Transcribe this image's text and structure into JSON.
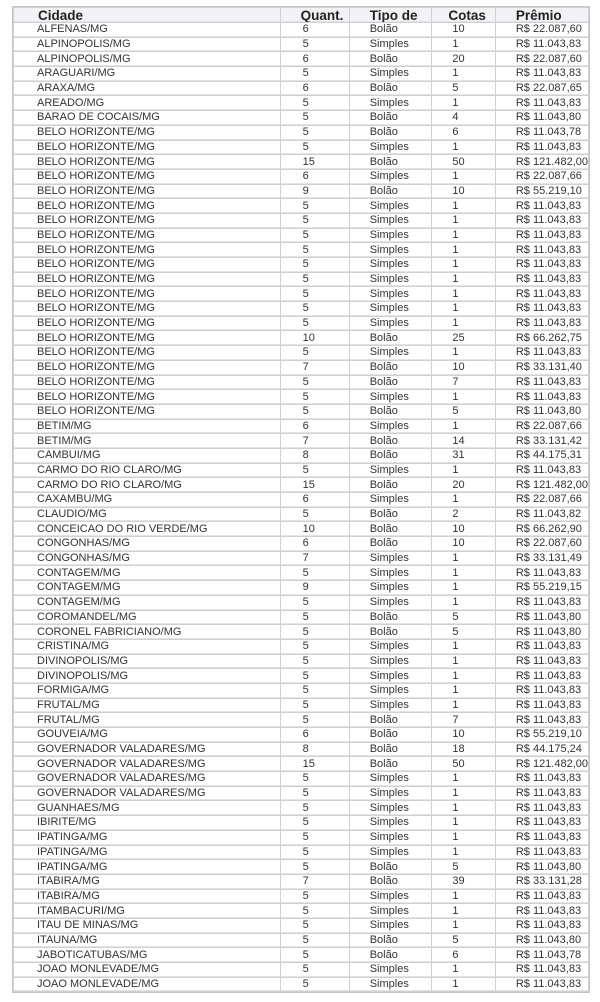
{
  "table": {
    "headers": [
      "Cidade",
      "Quant.",
      "Tipo de",
      "Cotas",
      "Prêmio"
    ],
    "rows": [
      [
        "ALFENAS/MG",
        "6",
        "Bolão",
        "10",
        "R$ 22.087,60"
      ],
      [
        "ALPINOPOLIS/MG",
        "5",
        "Simples",
        "1",
        "R$ 11.043,83"
      ],
      [
        "ALPINOPOLIS/MG",
        "6",
        "Bolão",
        "20",
        "R$ 22.087,60"
      ],
      [
        "ARAGUARI/MG",
        "5",
        "Simples",
        "1",
        "R$ 11.043,83"
      ],
      [
        "ARAXA/MG",
        "6",
        "Bolão",
        "5",
        "R$ 22.087,65"
      ],
      [
        "AREADO/MG",
        "5",
        "Simples",
        "1",
        "R$ 11.043,83"
      ],
      [
        "BARAO DE COCAIS/MG",
        "5",
        "Bolão",
        "4",
        "R$ 11.043,80"
      ],
      [
        "BELO HORIZONTE/MG",
        "5",
        "Bolão",
        "6",
        "R$ 11.043,78"
      ],
      [
        "BELO HORIZONTE/MG",
        "5",
        "Simples",
        "1",
        "R$ 11.043,83"
      ],
      [
        "BELO HORIZONTE/MG",
        "15",
        "Bolão",
        "50",
        "R$ 121.482,00"
      ],
      [
        "BELO HORIZONTE/MG",
        "6",
        "Simples",
        "1",
        "R$ 22.087,66"
      ],
      [
        "BELO HORIZONTE/MG",
        "9",
        "Bolão",
        "10",
        "R$ 55.219,10"
      ],
      [
        "BELO HORIZONTE/MG",
        "5",
        "Simples",
        "1",
        "R$ 11.043,83"
      ],
      [
        "BELO HORIZONTE/MG",
        "5",
        "Simples",
        "1",
        "R$ 11.043,83"
      ],
      [
        "BELO HORIZONTE/MG",
        "5",
        "Simples",
        "1",
        "R$ 11.043,83"
      ],
      [
        "BELO HORIZONTE/MG",
        "5",
        "Simples",
        "1",
        "R$ 11.043,83"
      ],
      [
        "BELO HORIZONTE/MG",
        "5",
        "Simples",
        "1",
        "R$ 11.043,83"
      ],
      [
        "BELO HORIZONTE/MG",
        "5",
        "Simples",
        "1",
        "R$ 11.043,83"
      ],
      [
        "BELO HORIZONTE/MG",
        "5",
        "Simples",
        "1",
        "R$ 11.043,83"
      ],
      [
        "BELO HORIZONTE/MG",
        "5",
        "Simples",
        "1",
        "R$ 11.043,83"
      ],
      [
        "BELO HORIZONTE/MG",
        "5",
        "Simples",
        "1",
        "R$ 11.043,83"
      ],
      [
        "BELO HORIZONTE/MG",
        "10",
        "Bolão",
        "25",
        "R$ 66.262,75"
      ],
      [
        "BELO HORIZONTE/MG",
        "5",
        "Simples",
        "1",
        "R$ 11.043,83"
      ],
      [
        "BELO HORIZONTE/MG",
        "7",
        "Bolão",
        "10",
        "R$ 33.131,40"
      ],
      [
        "BELO HORIZONTE/MG",
        "5",
        "Bolão",
        "7",
        "R$ 11.043,83"
      ],
      [
        "BELO HORIZONTE/MG",
        "5",
        "Simples",
        "1",
        "R$ 11.043,83"
      ],
      [
        "BELO HORIZONTE/MG",
        "5",
        "Bolão",
        "5",
        "R$ 11.043,80"
      ],
      [
        "BETIM/MG",
        "6",
        "Simples",
        "1",
        "R$ 22.087,66"
      ],
      [
        "BETIM/MG",
        "7",
        "Bolão",
        "14",
        "R$ 33.131,42"
      ],
      [
        "CAMBUI/MG",
        "8",
        "Bolão",
        "31",
        "R$ 44.175,31"
      ],
      [
        "CARMO DO RIO CLARO/MG",
        "5",
        "Simples",
        "1",
        "R$ 11.043,83"
      ],
      [
        "CARMO DO RIO CLARO/MG",
        "15",
        "Bolão",
        "20",
        "R$ 121.482,00"
      ],
      [
        "CAXAMBU/MG",
        "6",
        "Simples",
        "1",
        "R$ 22.087,66"
      ],
      [
        "CLAUDIO/MG",
        "5",
        "Bolão",
        "2",
        "R$ 11.043,82"
      ],
      [
        "CONCEICAO DO RIO VERDE/MG",
        "10",
        "Bolão",
        "10",
        "R$ 66.262,90"
      ],
      [
        "CONGONHAS/MG",
        "6",
        "Bolão",
        "10",
        "R$ 22.087,60"
      ],
      [
        "CONGONHAS/MG",
        "7",
        "Simples",
        "1",
        "R$ 33.131,49"
      ],
      [
        "CONTAGEM/MG",
        "5",
        "Simples",
        "1",
        "R$ 11.043,83"
      ],
      [
        "CONTAGEM/MG",
        "9",
        "Simples",
        "1",
        "R$ 55.219,15"
      ],
      [
        "CONTAGEM/MG",
        "5",
        "Simples",
        "1",
        "R$ 11.043,83"
      ],
      [
        "COROMANDEL/MG",
        "5",
        "Bolão",
        "5",
        "R$ 11.043,80"
      ],
      [
        "CORONEL FABRICIANO/MG",
        "5",
        "Bolão",
        "5",
        "R$ 11.043,80"
      ],
      [
        "CRISTINA/MG",
        "5",
        "Simples",
        "1",
        "R$ 11.043,83"
      ],
      [
        "DIVINOPOLIS/MG",
        "5",
        "Simples",
        "1",
        "R$ 11.043,83"
      ],
      [
        "DIVINOPOLIS/MG",
        "5",
        "Simples",
        "1",
        "R$ 11.043,83"
      ],
      [
        "FORMIGA/MG",
        "5",
        "Simples",
        "1",
        "R$ 11.043,83"
      ],
      [
        "FRUTAL/MG",
        "5",
        "Simples",
        "1",
        "R$ 11.043,83"
      ],
      [
        "FRUTAL/MG",
        "5",
        "Bolão",
        "7",
        "R$ 11.043,83"
      ],
      [
        "GOUVEIA/MG",
        "6",
        "Bolão",
        "10",
        "R$ 55.219,10"
      ],
      [
        "GOVERNADOR VALADARES/MG",
        "8",
        "Bolão",
        "18",
        "R$ 44.175,24"
      ],
      [
        "GOVERNADOR VALADARES/MG",
        "15",
        "Bolão",
        "50",
        "R$ 121.482,00"
      ],
      [
        "GOVERNADOR VALADARES/MG",
        "5",
        "Simples",
        "1",
        "R$ 11.043,83"
      ],
      [
        "GOVERNADOR VALADARES/MG",
        "5",
        "Simples",
        "1",
        "R$ 11.043,83"
      ],
      [
        "GUANHAES/MG",
        "5",
        "Simples",
        "1",
        "R$ 11.043,83"
      ],
      [
        "IBIRITE/MG",
        "5",
        "Simples",
        "1",
        "R$ 11.043,83"
      ],
      [
        "IPATINGA/MG",
        "5",
        "Simples",
        "1",
        "R$ 11.043,83"
      ],
      [
        "IPATINGA/MG",
        "5",
        "Simples",
        "1",
        "R$ 11.043,83"
      ],
      [
        "IPATINGA/MG",
        "5",
        "Bolão",
        "5",
        "R$ 11.043,80"
      ],
      [
        "ITABIRA/MG",
        "7",
        "Bolão",
        "39",
        "R$ 33.131,28"
      ],
      [
        "ITABIRA/MG",
        "5",
        "Simples",
        "1",
        "R$ 11.043,83"
      ],
      [
        "ITAMBACURI/MG",
        "5",
        "Simples",
        "1",
        "R$ 11.043,83"
      ],
      [
        "ITAU DE MINAS/MG",
        "5",
        "Simples",
        "1",
        "R$ 11.043,83"
      ],
      [
        "ITAUNA/MG",
        "5",
        "Bolão",
        "5",
        "R$ 11.043,80"
      ],
      [
        "JABOTICATUBAS/MG",
        "5",
        "Bolão",
        "6",
        "R$ 11.043,78"
      ],
      [
        "JOAO MONLEVADE/MG",
        "5",
        "Simples",
        "1",
        "R$ 11.043,83"
      ],
      [
        "JOAO MONLEVADE/MG",
        "5",
        "Simples",
        "1",
        "R$ 11.043,83"
      ]
    ]
  }
}
